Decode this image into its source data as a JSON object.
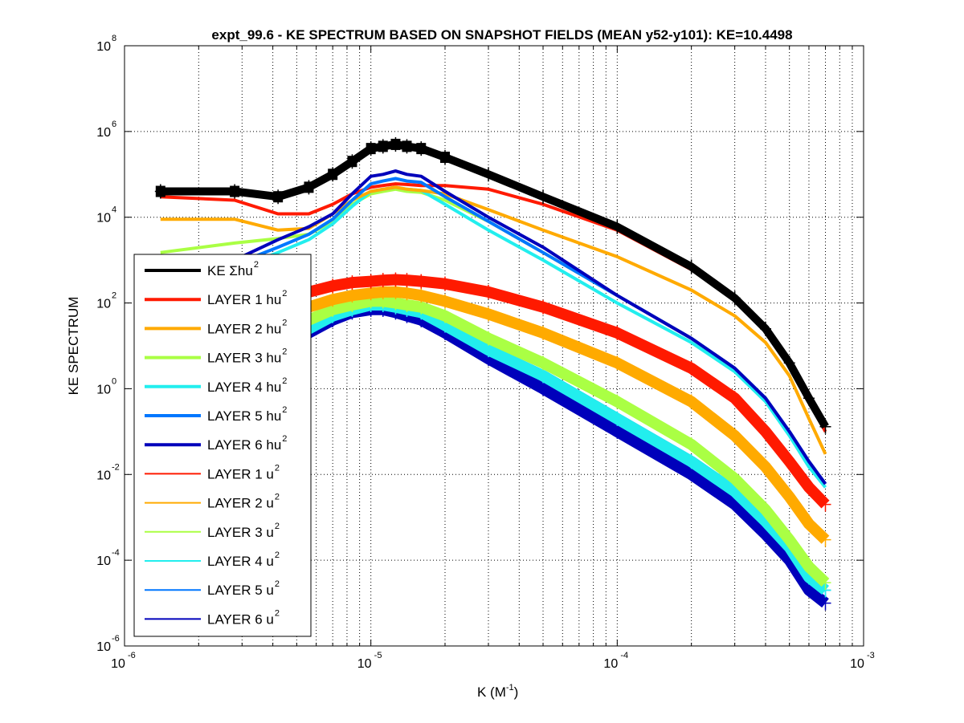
{
  "chart_data": {
    "type": "line",
    "title": "expt_99.6 - KE SPECTRUM BASED ON SNAPSHOT FIELDS (MEAN y52-y101): KE=10.4498",
    "xlabel": "K  (M",
    "xlabel_sup": "-1",
    "xlabel_close": ")",
    "ylabel": "KE SPECTRUM",
    "xscale": "log",
    "yscale": "log",
    "xlim": [
      1e-06,
      0.001
    ],
    "ylim": [
      1e-06,
      100000000.0
    ],
    "grid": true,
    "legend_position": "left-middle",
    "x_ticks": [
      {
        "base": "10",
        "exp": "-6",
        "value": 1e-06
      },
      {
        "base": "10",
        "exp": "-5",
        "value": 1e-05
      },
      {
        "base": "10",
        "exp": "-4",
        "value": 0.0001
      },
      {
        "base": "10",
        "exp": "-3",
        "value": 0.001
      }
    ],
    "y_ticks": [
      {
        "base": "10",
        "exp": "8",
        "value": 100000000.0
      },
      {
        "base": "10",
        "exp": "6",
        "value": 1000000.0
      },
      {
        "base": "10",
        "exp": "4",
        "value": 10000.0
      },
      {
        "base": "10",
        "exp": "2",
        "value": 100.0
      },
      {
        "base": "10",
        "exp": "0",
        "value": 1
      },
      {
        "base": "10",
        "exp": "-2",
        "value": 0.01
      },
      {
        "base": "10",
        "exp": "-4",
        "value": 0.0001
      },
      {
        "base": "10",
        "exp": "-6",
        "value": 1e-06
      }
    ],
    "x": [
      1.4e-06,
      2.8e-06,
      4.2e-06,
      5.6e-06,
      7e-06,
      8.4e-06,
      1e-05,
      1.12e-05,
      1.26e-05,
      1.4e-05,
      1.6e-05,
      2e-05,
      3e-05,
      5e-05,
      0.0001,
      0.0002,
      0.0003,
      0.0004,
      0.0005,
      0.0006,
      0.0007
    ],
    "series": [
      {
        "name": "KE Σhu",
        "sup": "2",
        "color": "#000000",
        "weight": "thick",
        "marker": "+",
        "values": [
          40000,
          40000,
          30000,
          50000,
          100000,
          200000,
          400000,
          450000,
          500000,
          450000,
          400000,
          250000,
          100000,
          30000,
          6000,
          700,
          130,
          25,
          4,
          0.6,
          0.13
        ]
      },
      {
        "name": "LAYER 1 hu",
        "sup": "2",
        "color": "#ff1a00",
        "weight": "thick",
        "marker": "",
        "values": [
          30000,
          25000,
          12000,
          12000,
          20000,
          35000,
          50000,
          55000,
          60000,
          58000,
          55000,
          55000,
          45000,
          20000,
          5000,
          600,
          120,
          25,
          4,
          0.5,
          0.1
        ]
      },
      {
        "name": "LAYER 2 hu",
        "sup": "2",
        "color": "#ffaa00",
        "weight": "thick",
        "marker": "",
        "values": [
          9000,
          9000,
          5000,
          5500,
          12000,
          25000,
          40000,
          45000,
          50000,
          45000,
          42000,
          35000,
          15000,
          5000,
          1200,
          200,
          50,
          12,
          2,
          0.2,
          0.03
        ]
      },
      {
        "name": "LAYER 3 hu",
        "sup": "2",
        "color": "#aaff44",
        "weight": "thick",
        "marker": "",
        "values": [
          1500,
          2500,
          3200,
          4000,
          8000,
          20000,
          35000,
          40000,
          45000,
          40000,
          38000,
          25000,
          8000,
          1500,
          150,
          15,
          3,
          0.6,
          0.1,
          0.02,
          0.006
        ]
      },
      {
        "name": "LAYER 4 hu",
        "sup": "2",
        "color": "#22eeee",
        "weight": "thick",
        "marker": "",
        "values": [
          200,
          600,
          1500,
          3000,
          7000,
          18000,
          40000,
          45000,
          50000,
          45000,
          42000,
          20000,
          5000,
          1000,
          100,
          12,
          2.5,
          0.5,
          0.08,
          0.015,
          0.005
        ]
      },
      {
        "name": "LAYER 5 hu",
        "sup": "2",
        "color": "#0077ff",
        "weight": "thick",
        "marker": "",
        "values": [
          200,
          800,
          2000,
          4000,
          9000,
          25000,
          60000,
          70000,
          80000,
          70000,
          65000,
          30000,
          8000,
          1500,
          150,
          15,
          3,
          0.6,
          0.1,
          0.02,
          0.006
        ]
      },
      {
        "name": "LAYER 6 hu",
        "sup": "2",
        "color": "#0000bb",
        "weight": "thick",
        "marker": "",
        "values": [
          200,
          1000,
          3000,
          6000,
          12000,
          35000,
          90000,
          100000,
          120000,
          100000,
          90000,
          40000,
          10000,
          2000,
          150,
          15,
          3,
          0.6,
          0.1,
          0.02,
          0.006
        ]
      },
      {
        "name": "LAYER 1 u",
        "sup": "2",
        "color": "#ff1a00",
        "weight": "thin",
        "marker": "+",
        "values": [
          50,
          80,
          120,
          180,
          250,
          300,
          320,
          340,
          350,
          340,
          320,
          280,
          180,
          80,
          20,
          3,
          0.6,
          0.1,
          0.02,
          0.005,
          0.002
        ]
      },
      {
        "name": "LAYER 2 u",
        "sup": "2",
        "color": "#ffaa00",
        "weight": "thin",
        "marker": "+",
        "values": [
          20,
          35,
          55,
          80,
          120,
          150,
          170,
          180,
          180,
          170,
          150,
          110,
          55,
          20,
          4,
          0.5,
          0.08,
          0.015,
          0.003,
          0.0007,
          0.0003
        ]
      },
      {
        "name": "LAYER 3 u",
        "sup": "2",
        "color": "#aaff44",
        "weight": "thin",
        "marker": "+",
        "values": [
          8,
          15,
          25,
          40,
          70,
          90,
          110,
          110,
          100,
          90,
          80,
          50,
          15,
          4,
          0.5,
          0.05,
          0.008,
          0.0015,
          0.0003,
          7e-05,
          3e-05
        ]
      },
      {
        "name": "LAYER 4 u",
        "sup": "2",
        "color": "#22eeee",
        "weight": "thin",
        "marker": "+",
        "values": [
          5,
          8,
          15,
          25,
          50,
          70,
          90,
          90,
          80,
          70,
          60,
          30,
          8,
          2,
          0.2,
          0.02,
          0.004,
          0.0008,
          0.0002,
          4e-05,
          2e-05
        ]
      },
      {
        "name": "LAYER 5 u",
        "sup": "2",
        "color": "#0077ff",
        "weight": "thin",
        "marker": "+",
        "values": [
          5,
          8,
          15,
          25,
          50,
          70,
          90,
          90,
          80,
          70,
          60,
          30,
          8,
          2,
          0.2,
          0.02,
          0.004,
          0.0008,
          0.0002,
          4e-05,
          2e-05
        ]
      },
      {
        "name": "LAYER 6 u",
        "sup": "2",
        "color": "#0000bb",
        "weight": "thin",
        "marker": "+",
        "values": [
          3,
          5,
          10,
          20,
          40,
          60,
          70,
          70,
          60,
          50,
          40,
          20,
          5,
          1,
          0.1,
          0.01,
          0.002,
          0.0004,
          0.0001,
          2e-05,
          1e-05
        ]
      }
    ]
  }
}
